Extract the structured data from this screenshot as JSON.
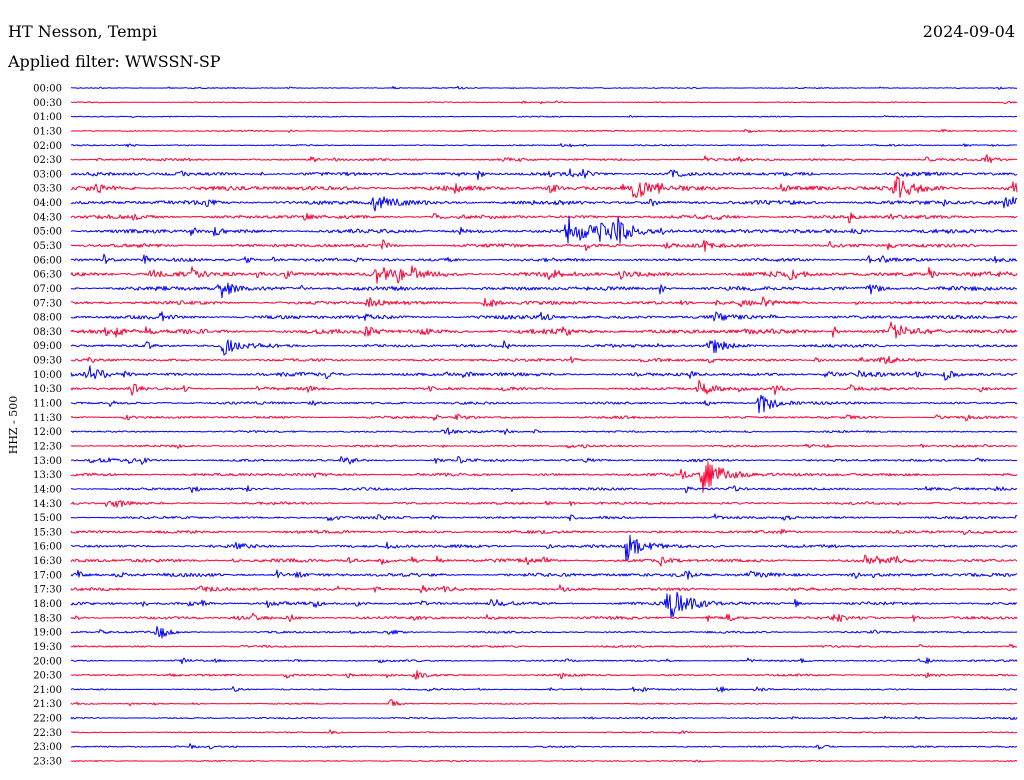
{
  "chart_data": {
    "type": "line",
    "title": "HT Nesson, Tempi",
    "date": "2024-09-04",
    "subtitle": "Applied filter: WWSSN-SP",
    "ylabel": "HHZ - 500",
    "xlim": [
      0,
      30
    ],
    "grid": false,
    "trace_colors": [
      "#0000ff",
      "#ff0033"
    ],
    "traces": [
      {
        "start": "00:00",
        "noise": 0.04,
        "events": [
          {
            "minute": 3.9,
            "amp": 0.08
          },
          {
            "minute": 6.9,
            "amp": 0.08
          }
        ]
      },
      {
        "start": "00:30",
        "noise": 0.04,
        "events": [
          {
            "minute": 29.6,
            "amp": 0.1
          }
        ]
      },
      {
        "start": "01:00",
        "noise": 0.04,
        "events": [
          {
            "minute": 17.7,
            "amp": 0.08
          }
        ]
      },
      {
        "start": "01:30",
        "noise": 0.05,
        "events": [
          {
            "minute": 6.9,
            "amp": 0.1
          },
          {
            "minute": 21.4,
            "amp": 0.2
          }
        ]
      },
      {
        "start": "02:00",
        "noise": 0.05,
        "events": [
          {
            "minute": 1.8,
            "amp": 0.15
          },
          {
            "minute": 15.8,
            "amp": 0.12
          },
          {
            "minute": 23.8,
            "amp": 0.12
          },
          {
            "minute": 28.3,
            "amp": 0.15
          }
        ]
      },
      {
        "start": "02:30",
        "noise": 0.09,
        "events": [
          {
            "minute": 3.6,
            "amp": 0.15
          },
          {
            "minute": 7.6,
            "amp": 0.25
          },
          {
            "minute": 29.0,
            "amp": 0.35
          }
        ]
      },
      {
        "start": "03:00",
        "noise": 0.14,
        "events": [
          {
            "minute": 0.6,
            "amp": 0.15
          },
          {
            "minute": 19.0,
            "amp": 0.35
          }
        ]
      },
      {
        "start": "03:30",
        "noise": 0.19,
        "events": [
          {
            "minute": 17.8,
            "amp": 0.75
          },
          {
            "minute": 26.1,
            "amp": 0.9
          }
        ]
      },
      {
        "start": "04:00",
        "noise": 0.17,
        "events": [
          {
            "minute": 9.6,
            "amp": 0.85
          },
          {
            "minute": 29.6,
            "amp": 0.6
          }
        ]
      },
      {
        "start": "04:30",
        "noise": 0.15,
        "events": [
          {
            "minute": 2.0,
            "amp": 0.3
          },
          {
            "minute": 20.3,
            "amp": 0.25
          }
        ]
      },
      {
        "start": "05:00",
        "noise": 0.17,
        "events": [
          {
            "minute": 15.7,
            "amp": 1.1
          },
          {
            "minute": 17.1,
            "amp": 1.2
          },
          {
            "minute": 24.8,
            "amp": 0.3
          }
        ]
      },
      {
        "start": "05:30",
        "noise": 0.14,
        "events": [
          {
            "minute": 18.8,
            "amp": 0.25
          }
        ]
      },
      {
        "start": "06:00",
        "noise": 0.13,
        "events": [
          {
            "minute": 2.3,
            "amp": 0.3
          },
          {
            "minute": 5.5,
            "amp": 0.3
          },
          {
            "minute": 25.7,
            "amp": 0.3
          }
        ]
      },
      {
        "start": "06:30",
        "noise": 0.2,
        "events": [
          {
            "minute": 2.5,
            "amp": 0.35
          },
          {
            "minute": 9.5,
            "amp": 0.9
          },
          {
            "minute": 10.8,
            "amp": 0.4
          },
          {
            "minute": 15.1,
            "amp": 0.35
          },
          {
            "minute": 17.4,
            "amp": 0.3
          },
          {
            "minute": 22.8,
            "amp": 0.3
          }
        ]
      },
      {
        "start": "07:00",
        "noise": 0.17,
        "events": [
          {
            "minute": 4.7,
            "amp": 0.75
          },
          {
            "minute": 25.3,
            "amp": 0.45
          }
        ]
      },
      {
        "start": "07:30",
        "noise": 0.14,
        "events": [
          {
            "minute": 9.4,
            "amp": 0.45
          },
          {
            "minute": 13.1,
            "amp": 0.4
          },
          {
            "minute": 21.2,
            "amp": 0.25
          }
        ]
      },
      {
        "start": "08:00",
        "noise": 0.15,
        "events": [
          {
            "minute": 14.9,
            "amp": 0.3
          },
          {
            "minute": 20.4,
            "amp": 0.3
          }
        ]
      },
      {
        "start": "08:30",
        "noise": 0.19,
        "events": [
          {
            "minute": 1.4,
            "amp": 0.3
          },
          {
            "minute": 9.3,
            "amp": 0.4
          },
          {
            "minute": 26.0,
            "amp": 0.65
          }
        ]
      },
      {
        "start": "09:00",
        "noise": 0.13,
        "events": [
          {
            "minute": 4.8,
            "amp": 0.7
          },
          {
            "minute": 20.3,
            "amp": 0.6
          }
        ]
      },
      {
        "start": "09:30",
        "noise": 0.11,
        "events": [
          {
            "minute": 15.8,
            "amp": 0.25
          },
          {
            "minute": 23.6,
            "amp": 0.3
          },
          {
            "minute": 25.7,
            "amp": 0.4
          }
        ]
      },
      {
        "start": "10:00",
        "noise": 0.15,
        "events": [
          {
            "minute": 0.5,
            "amp": 0.65
          },
          {
            "minute": 23.9,
            "amp": 0.3
          },
          {
            "minute": 27.7,
            "amp": 0.4
          }
        ]
      },
      {
        "start": "10:30",
        "noise": 0.11,
        "events": [
          {
            "minute": 1.9,
            "amp": 0.35
          },
          {
            "minute": 19.9,
            "amp": 0.65
          },
          {
            "minute": 22.3,
            "amp": 0.4
          }
        ]
      },
      {
        "start": "11:00",
        "noise": 0.1,
        "events": [
          {
            "minute": 1.2,
            "amp": 0.25
          },
          {
            "minute": 7.6,
            "amp": 0.25
          },
          {
            "minute": 21.8,
            "amp": 0.9
          }
        ]
      },
      {
        "start": "11:30",
        "noise": 0.1,
        "events": [
          {
            "minute": 1.7,
            "amp": 0.25
          },
          {
            "minute": 12.2,
            "amp": 0.3
          }
        ]
      },
      {
        "start": "12:00",
        "noise": 0.08,
        "events": [
          {
            "minute": 11.9,
            "amp": 0.2
          }
        ]
      },
      {
        "start": "12:30",
        "noise": 0.08,
        "events": [
          {
            "minute": 3.3,
            "amp": 0.2
          },
          {
            "minute": 23.3,
            "amp": 0.2
          }
        ]
      },
      {
        "start": "13:00",
        "noise": 0.1,
        "events": [
          {
            "minute": 0.6,
            "amp": 0.25
          },
          {
            "minute": 8.8,
            "amp": 0.2
          },
          {
            "minute": 16.3,
            "amp": 0.2
          },
          {
            "minute": 28.7,
            "amp": 0.2
          }
        ]
      },
      {
        "start": "13:30",
        "noise": 0.12,
        "events": [
          {
            "minute": 20.0,
            "amp": 1.3
          }
        ]
      },
      {
        "start": "14:00",
        "noise": 0.1,
        "events": [
          {
            "minute": 3.8,
            "amp": 0.25
          },
          {
            "minute": 20.9,
            "amp": 0.25
          },
          {
            "minute": 29.3,
            "amp": 0.25
          }
        ]
      },
      {
        "start": "14:30",
        "noise": 0.1,
        "events": [
          {
            "minute": 1.3,
            "amp": 0.5
          }
        ]
      },
      {
        "start": "15:00",
        "noise": 0.1,
        "events": [
          {
            "minute": 8.1,
            "amp": 0.3
          },
          {
            "minute": 22.6,
            "amp": 0.25
          }
        ]
      },
      {
        "start": "15:30",
        "noise": 0.12,
        "events": []
      },
      {
        "start": "16:00",
        "noise": 0.12,
        "events": [
          {
            "minute": 5.2,
            "amp": 0.3
          },
          {
            "minute": 10.0,
            "amp": 0.25
          },
          {
            "minute": 17.6,
            "amp": 1.0
          }
        ]
      },
      {
        "start": "16:30",
        "noise": 0.14,
        "events": [
          {
            "minute": 8.8,
            "amp": 0.25
          },
          {
            "minute": 18.7,
            "amp": 0.4
          },
          {
            "minute": 26.0,
            "amp": 0.4
          }
        ]
      },
      {
        "start": "17:00",
        "noise": 0.14,
        "events": [
          {
            "minute": 0.2,
            "amp": 0.3
          },
          {
            "minute": 1.4,
            "amp": 0.3
          },
          {
            "minute": 19.5,
            "amp": 0.4
          },
          {
            "minute": 21.5,
            "amp": 0.25
          }
        ]
      },
      {
        "start": "17:30",
        "noise": 0.12,
        "events": [
          {
            "minute": 4.1,
            "amp": 0.3
          },
          {
            "minute": 9.6,
            "amp": 0.25
          },
          {
            "minute": 15.5,
            "amp": 0.25
          }
        ]
      },
      {
        "start": "18:00",
        "noise": 0.12,
        "events": [
          {
            "minute": 6.2,
            "amp": 0.25
          },
          {
            "minute": 9.0,
            "amp": 0.25
          },
          {
            "minute": 13.3,
            "amp": 0.4
          },
          {
            "minute": 18.9,
            "amp": 1.2
          }
        ]
      },
      {
        "start": "18:30",
        "noise": 0.12,
        "events": [
          {
            "minute": 6.9,
            "amp": 0.25
          },
          {
            "minute": 10.9,
            "amp": 0.25
          },
          {
            "minute": 24.2,
            "amp": 0.35
          }
        ]
      },
      {
        "start": "19:00",
        "noise": 0.08,
        "events": [
          {
            "minute": 2.7,
            "amp": 0.4
          },
          {
            "minute": 10.1,
            "amp": 0.25
          }
        ]
      },
      {
        "start": "19:30",
        "noise": 0.08,
        "events": []
      },
      {
        "start": "20:00",
        "noise": 0.07,
        "events": [
          {
            "minute": 3.5,
            "amp": 0.2
          },
          {
            "minute": 27.1,
            "amp": 0.25
          }
        ]
      },
      {
        "start": "20:30",
        "noise": 0.08,
        "events": [
          {
            "minute": 6.8,
            "amp": 0.25
          },
          {
            "minute": 10.9,
            "amp": 0.35
          }
        ]
      },
      {
        "start": "21:00",
        "noise": 0.06,
        "events": [
          {
            "minute": 5.1,
            "amp": 0.2
          },
          {
            "minute": 20.6,
            "amp": 0.2
          },
          {
            "minute": 21.7,
            "amp": 0.25
          }
        ]
      },
      {
        "start": "21:30",
        "noise": 0.05,
        "events": [
          {
            "minute": 10.1,
            "amp": 0.3
          }
        ]
      },
      {
        "start": "22:00",
        "noise": 0.06,
        "events": []
      },
      {
        "start": "22:30",
        "noise": 0.05,
        "events": [
          {
            "minute": 8.2,
            "amp": 0.2
          },
          {
            "minute": 19.3,
            "amp": 0.15
          }
        ]
      },
      {
        "start": "23:00",
        "noise": 0.06,
        "events": [
          {
            "minute": 23.7,
            "amp": 0.25
          }
        ]
      },
      {
        "start": "23:30",
        "noise": 0.05,
        "events": []
      }
    ]
  }
}
